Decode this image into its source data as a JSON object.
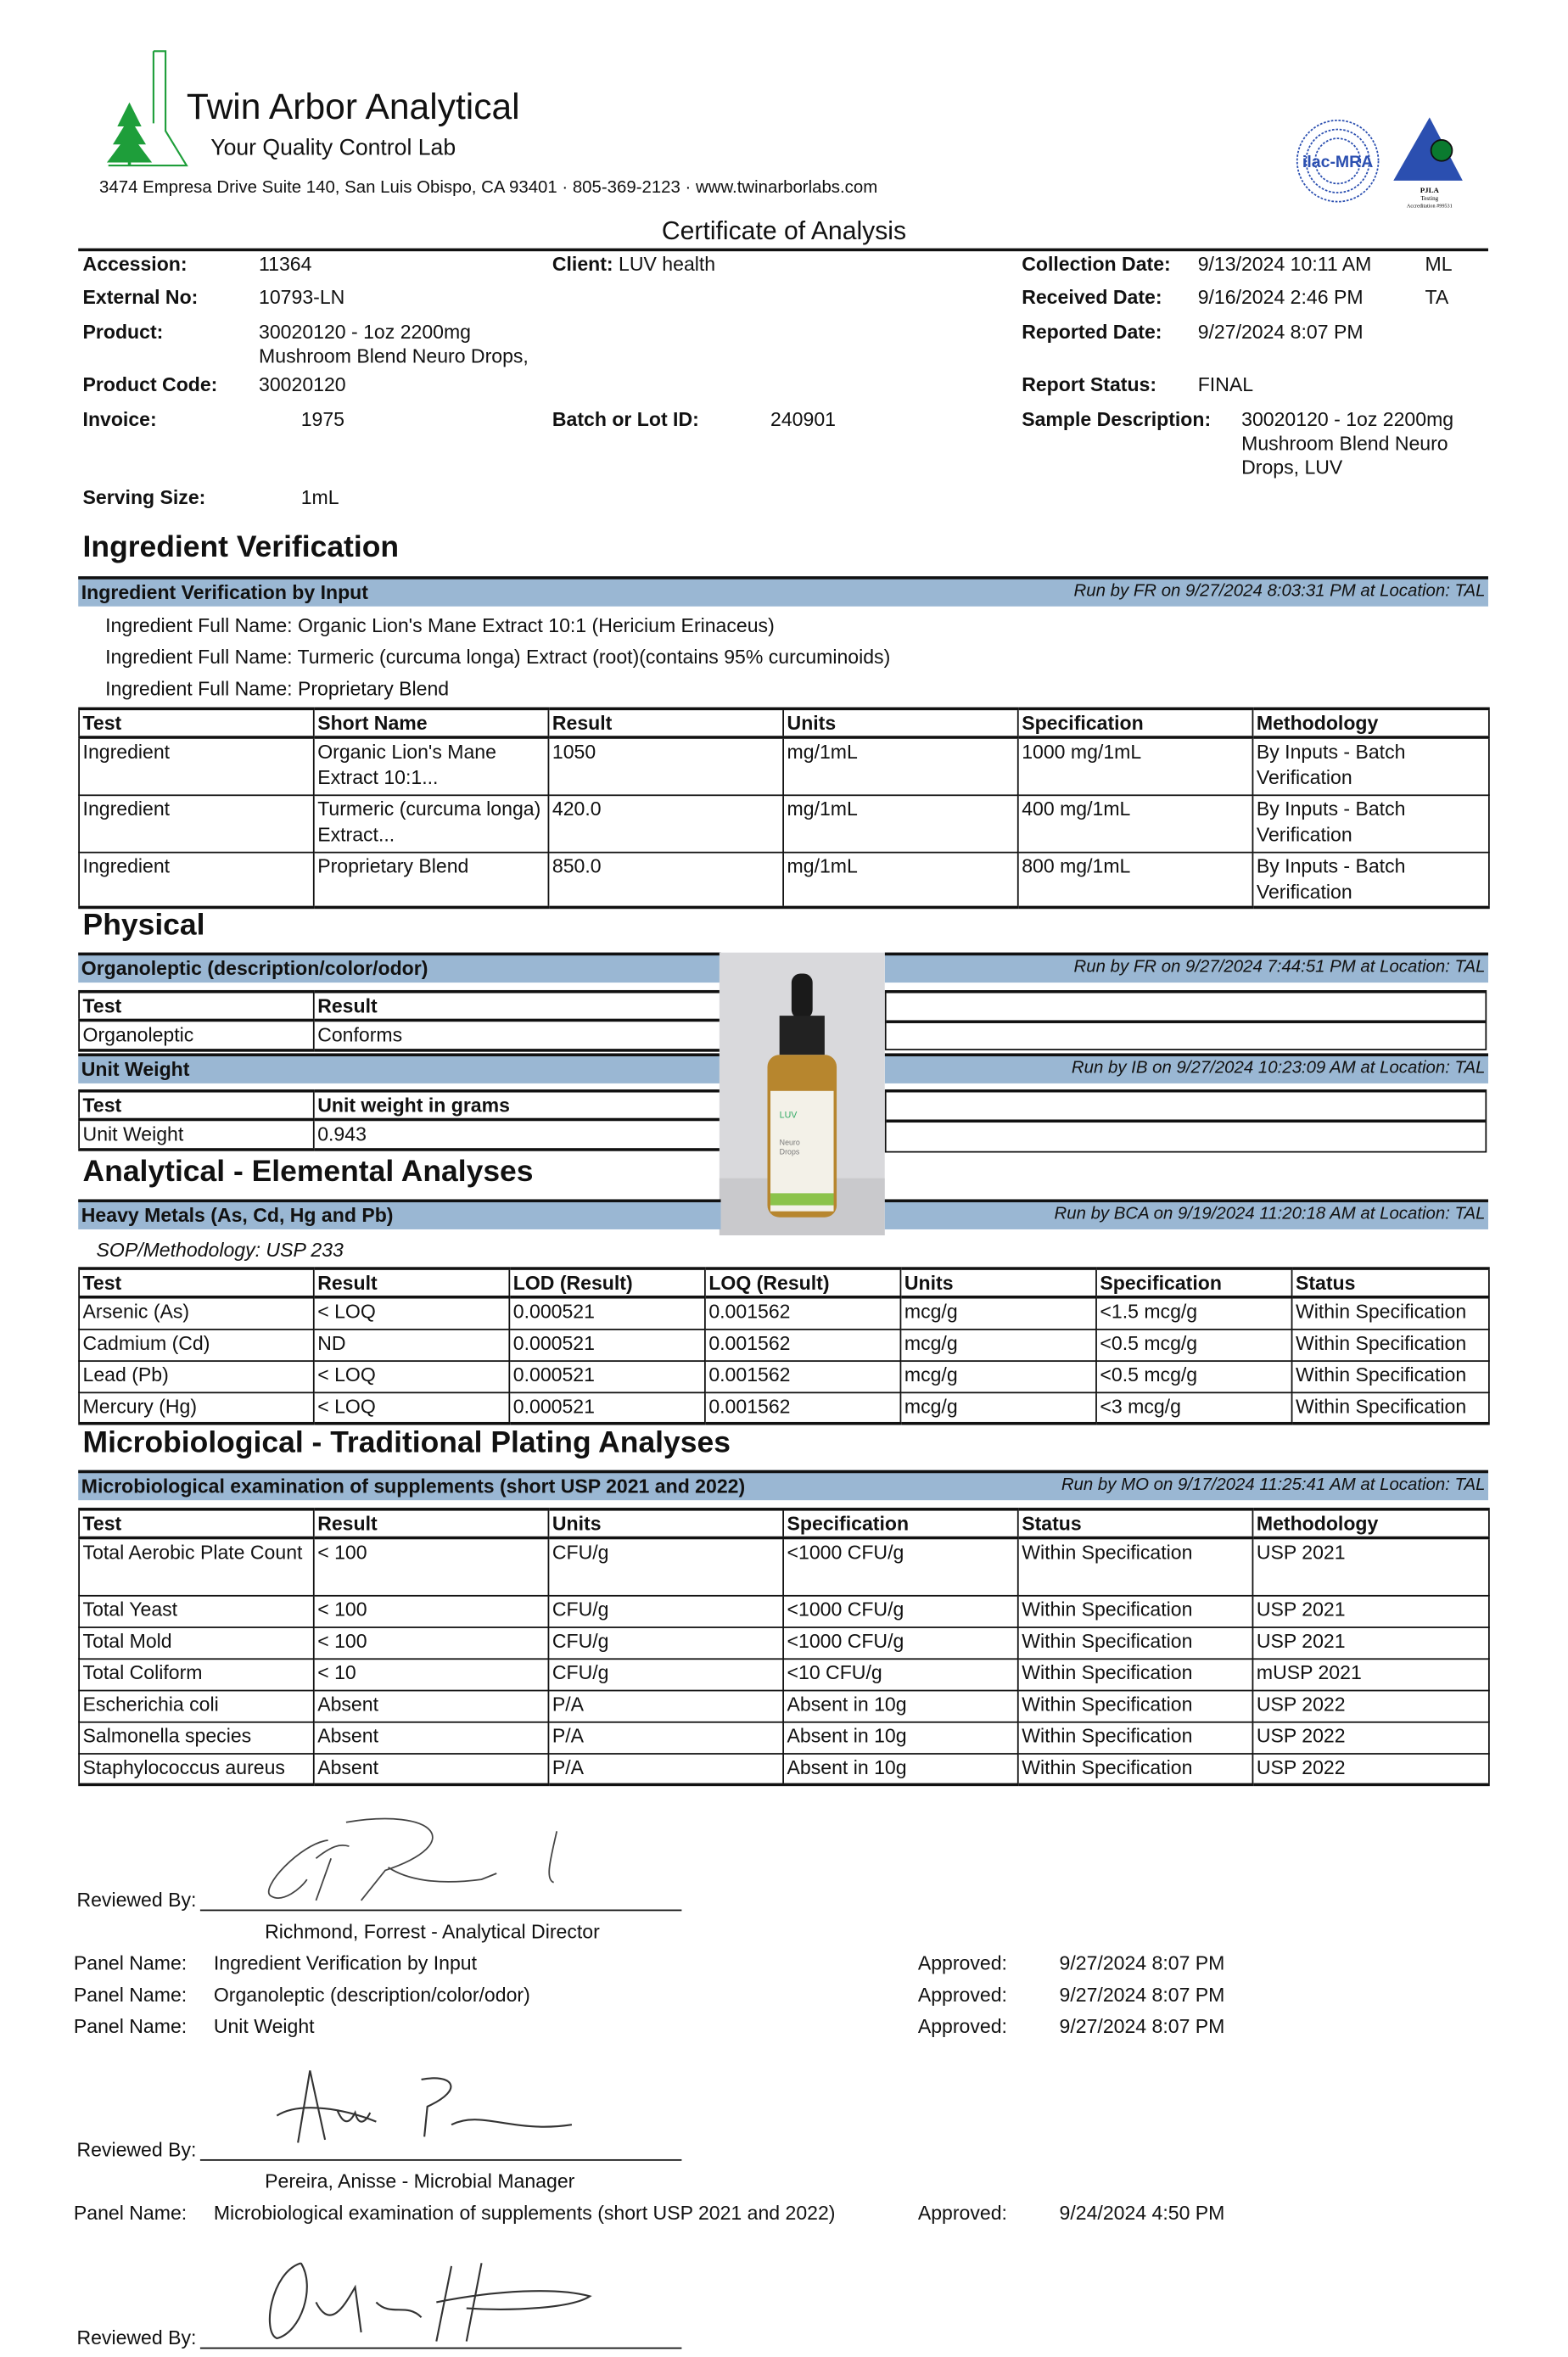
{
  "lab": {
    "name": "Twin Arbor Analytical",
    "tagline": "Your Quality Control Lab",
    "address": "3474 Empresa Drive Suite 140, San Luis Obispo, CA 93401  ·  805-369-2123  ·  www.twinarborlabs.com",
    "accreditation_logos": [
      "ilac-MRA",
      "PJLA Testing Accreditation #99531"
    ],
    "brand_color": "#1e9e3a"
  },
  "doc_title": "Certificate of Analysis",
  "info": {
    "accession_label": "Accession:",
    "accession": "11364",
    "external_label": "External No:",
    "external": "10793-LN",
    "product_label": "Product:",
    "product_line1": "30020120 - 1oz 2200mg",
    "product_line2": "Mushroom Blend Neuro Drops,",
    "product_code_label": "Product Code:",
    "product_code": "30020120",
    "invoice_label": "Invoice:",
    "invoice": "1975",
    "serving_label": "Serving Size:",
    "serving": "1mL",
    "client_label": "Client:",
    "client": "LUV health",
    "batch_label": "Batch or Lot ID:",
    "batch": "240901",
    "collection_label": "Collection Date:",
    "collection": "9/13/2024 10:11 AM",
    "collection_initials": "ML",
    "received_label": "Received Date:",
    "received": "9/16/2024 2:46 PM",
    "received_initials": "TA",
    "reported_label": "Reported Date:",
    "reported": "9/27/2024 8:07 PM",
    "status_label": "Report Status:",
    "status": "FINAL",
    "sample_label": "Sample Description:",
    "sample_line1": "30020120 - 1oz 2200mg",
    "sample_line2": "Mushroom Blend Neuro",
    "sample_line3": "Drops, LUV"
  },
  "ingredient": {
    "section": "Ingredient Verification",
    "panel": "Ingredient Verification by Input",
    "run": "Run by FR on 9/27/2024 8:03:31 PM at Location: TAL",
    "full_names": [
      "Ingredient Full Name: Organic Lion's Mane Extract 10:1 (Hericium Erinaceus)",
      "Ingredient Full Name: Turmeric (curcuma longa) Extract (root)(contains 95% curcuminoids)",
      "Ingredient Full Name: Proprietary Blend"
    ],
    "headers": [
      "Test",
      "Short Name",
      "Result",
      "Units",
      "Specification",
      "Methodology"
    ],
    "rows": [
      [
        "Ingredient",
        "Organic Lion's Mane Extract 10:1...",
        "1050",
        "mg/1mL",
        "1000 mg/1mL",
        "By Inputs - Batch Verification"
      ],
      [
        "Ingredient",
        "Turmeric (curcuma longa) Extract...",
        "420.0",
        "mg/1mL",
        "400 mg/1mL",
        "By Inputs - Batch Verification"
      ],
      [
        "Ingredient",
        "Proprietary Blend",
        "850.0",
        "mg/1mL",
        "800 mg/1mL",
        "By Inputs - Batch Verification"
      ]
    ]
  },
  "physical": {
    "section": "Physical",
    "organoleptic": {
      "panel": "Organoleptic (description/color/odor)",
      "run": "Run by FR on 9/27/2024 7:44:51 PM at Location: TAL",
      "headers": [
        "Test",
        "Result"
      ],
      "rows": [
        [
          "Organoleptic",
          "Conforms"
        ]
      ]
    },
    "unit_weight": {
      "panel": "Unit Weight",
      "run": "Run by IB on 9/27/2024 10:23:09 AM at Location: TAL",
      "headers": [
        "Test",
        "Unit weight in grams"
      ],
      "rows": [
        [
          "Unit Weight",
          "0.943"
        ]
      ]
    },
    "product_photo_label": [
      "LUV",
      "Neuro Drops"
    ]
  },
  "elemental": {
    "section": "Analytical - Elemental Analyses",
    "panel": "Heavy Metals (As, Cd, Hg and Pb)",
    "run": "Run by BCA on 9/19/2024 11:20:18 AM at Location: TAL",
    "sop": "SOP/Methodology: USP 233",
    "headers": [
      "Test",
      "Result",
      "LOD (Result)",
      "LOQ (Result)",
      "Units",
      "Specification",
      "Status"
    ],
    "rows": [
      [
        "Arsenic (As)",
        "< LOQ",
        "0.000521",
        "0.001562",
        "mcg/g",
        "<1.5 mcg/g",
        "Within Specification"
      ],
      [
        "Cadmium (Cd)",
        "ND",
        "0.000521",
        "0.001562",
        "mcg/g",
        "<0.5 mcg/g",
        "Within Specification"
      ],
      [
        "Lead (Pb)",
        "< LOQ",
        "0.000521",
        "0.001562",
        "mcg/g",
        "<0.5 mcg/g",
        "Within Specification"
      ],
      [
        "Mercury (Hg)",
        "< LOQ",
        "0.000521",
        "0.001562",
        "mcg/g",
        "<3 mcg/g",
        "Within Specification"
      ]
    ]
  },
  "micro": {
    "section": "Microbiological - Traditional Plating Analyses",
    "panel": "Microbiological examination of supplements (short USP 2021 and 2022)",
    "run": "Run by MO on 9/17/2024 11:25:41 AM at Location: TAL",
    "headers": [
      "Test",
      "Result",
      "Units",
      "Specification",
      "Status",
      "Methodology"
    ],
    "rows": [
      [
        "Total Aerobic Plate Count",
        "< 100",
        "CFU/g",
        "<1000 CFU/g",
        "Within Specification",
        "USP 2021"
      ],
      [
        "Total Yeast",
        "< 100",
        "CFU/g",
        "<1000 CFU/g",
        "Within Specification",
        "USP 2021"
      ],
      [
        "Total Mold",
        "< 100",
        "CFU/g",
        "<1000 CFU/g",
        "Within Specification",
        "USP 2021"
      ],
      [
        "Total Coliform",
        "< 10",
        "CFU/g",
        "<10 CFU/g",
        "Within Specification",
        "mUSP 2021"
      ],
      [
        "Escherichia coli",
        "Absent",
        "P/A",
        "Absent in 10g",
        "Within Specification",
        "USP 2022"
      ],
      [
        "Salmonella species",
        "Absent",
        "P/A",
        "Absent in 10g",
        "Within Specification",
        "USP 2022"
      ],
      [
        "Staphylococcus aureus",
        "Absent",
        "P/A",
        "Absent in 10g",
        "Within Specification",
        "USP 2022"
      ]
    ]
  },
  "reviews": {
    "reviewed_label": "Reviewed By:",
    "panel_label": "Panel Name:",
    "approved_label": "Approved:",
    "r1": {
      "reviewer": "Richmond, Forrest   -   Analytical Director",
      "panels": [
        {
          "name": "Ingredient Verification by Input",
          "date": "9/27/2024 8:07 PM"
        },
        {
          "name": "Organoleptic (description/color/odor)",
          "date": "9/27/2024 8:07 PM"
        },
        {
          "name": "Unit Weight",
          "date": "9/27/2024 8:07 PM"
        }
      ]
    },
    "r2": {
      "reviewer": "Pereira, Anisse   -   Microbial Manager",
      "panels": [
        {
          "name": "Microbiological examination of supplements (short USP 2021 and 2022)",
          "date": "9/24/2024 4:50 PM"
        }
      ]
    }
  }
}
